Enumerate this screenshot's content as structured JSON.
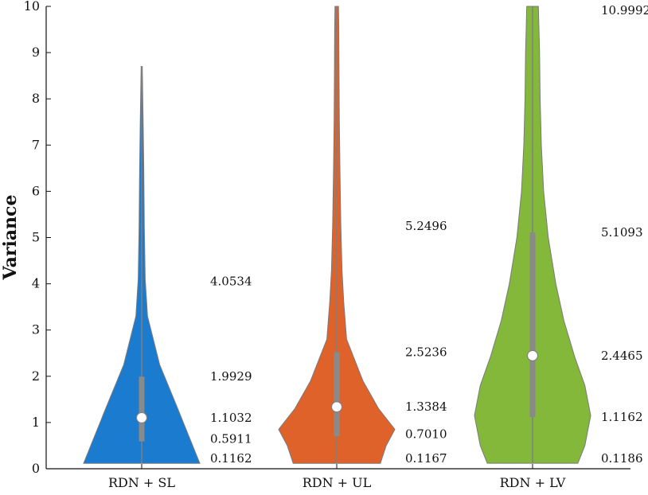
{
  "chart_data": {
    "type": "violin",
    "xlabel": "",
    "ylabel": "Variance",
    "ylim": [
      0,
      10
    ],
    "yticks": [
      0,
      1,
      2,
      3,
      4,
      5,
      6,
      7,
      8,
      9,
      10
    ],
    "categories": [
      "RDN + SL",
      "RDN + UL",
      "RDN + LV"
    ],
    "grid": false,
    "series": [
      {
        "color": "#1a7bcf",
        "min": 0.1162,
        "q1": 0.5911,
        "median": 1.1032,
        "q3": 1.9929,
        "upper_whisker": 4.0534,
        "whisker_top": 8.7,
        "labels": [
          "4.0534",
          "1.9929",
          "1.1032",
          "0.5911",
          "0.1162"
        ],
        "shape": [
          [
            0.1162,
            1.0
          ],
          [
            1.3,
            0.62
          ],
          [
            2.25,
            0.31
          ],
          [
            3.3,
            0.1
          ],
          [
            4.1,
            0.06
          ],
          [
            5.2,
            0.045
          ],
          [
            6.5,
            0.035
          ],
          [
            7.5,
            0.025
          ],
          [
            8.7,
            0.01
          ]
        ]
      },
      {
        "color": "#e0622b",
        "min": 0.1167,
        "q1": 0.701,
        "median": 1.3384,
        "q3": 2.5236,
        "upper_whisker": 5.2496,
        "whisker_top": 10,
        "labels": [
          "5.2496",
          "2.5236",
          "1.3384",
          "0.7010",
          "0.1167"
        ],
        "shape": [
          [
            0.1167,
            0.75
          ],
          [
            0.5,
            0.85
          ],
          [
            0.85,
            1.0
          ],
          [
            1.3,
            0.72
          ],
          [
            1.9,
            0.45
          ],
          [
            2.8,
            0.17
          ],
          [
            3.6,
            0.12
          ],
          [
            4.3,
            0.09
          ],
          [
            5.3,
            0.07
          ],
          [
            6.5,
            0.055
          ],
          [
            7.5,
            0.045
          ],
          [
            8.5,
            0.04
          ],
          [
            9.5,
            0.035
          ],
          [
            10,
            0.03
          ]
        ]
      },
      {
        "color": "#83b83b",
        "min": 0.1186,
        "q1": 1.1162,
        "median": 2.4465,
        "q3": 5.1093,
        "upper_whisker": 10.9992,
        "whisker_top": 10,
        "labels": [
          "10.9992",
          "5.1093",
          "2.4465",
          "1.1162",
          "0.1186"
        ],
        "shape": [
          [
            0.1186,
            0.78
          ],
          [
            0.5,
            0.9
          ],
          [
            1.15,
            1.0
          ],
          [
            1.8,
            0.9
          ],
          [
            2.4,
            0.73
          ],
          [
            3.2,
            0.54
          ],
          [
            4.0,
            0.4
          ],
          [
            5.0,
            0.27
          ],
          [
            6.0,
            0.19
          ],
          [
            7.0,
            0.15
          ],
          [
            8.0,
            0.13
          ],
          [
            9.0,
            0.12
          ],
          [
            10,
            0.1
          ]
        ]
      }
    ]
  }
}
